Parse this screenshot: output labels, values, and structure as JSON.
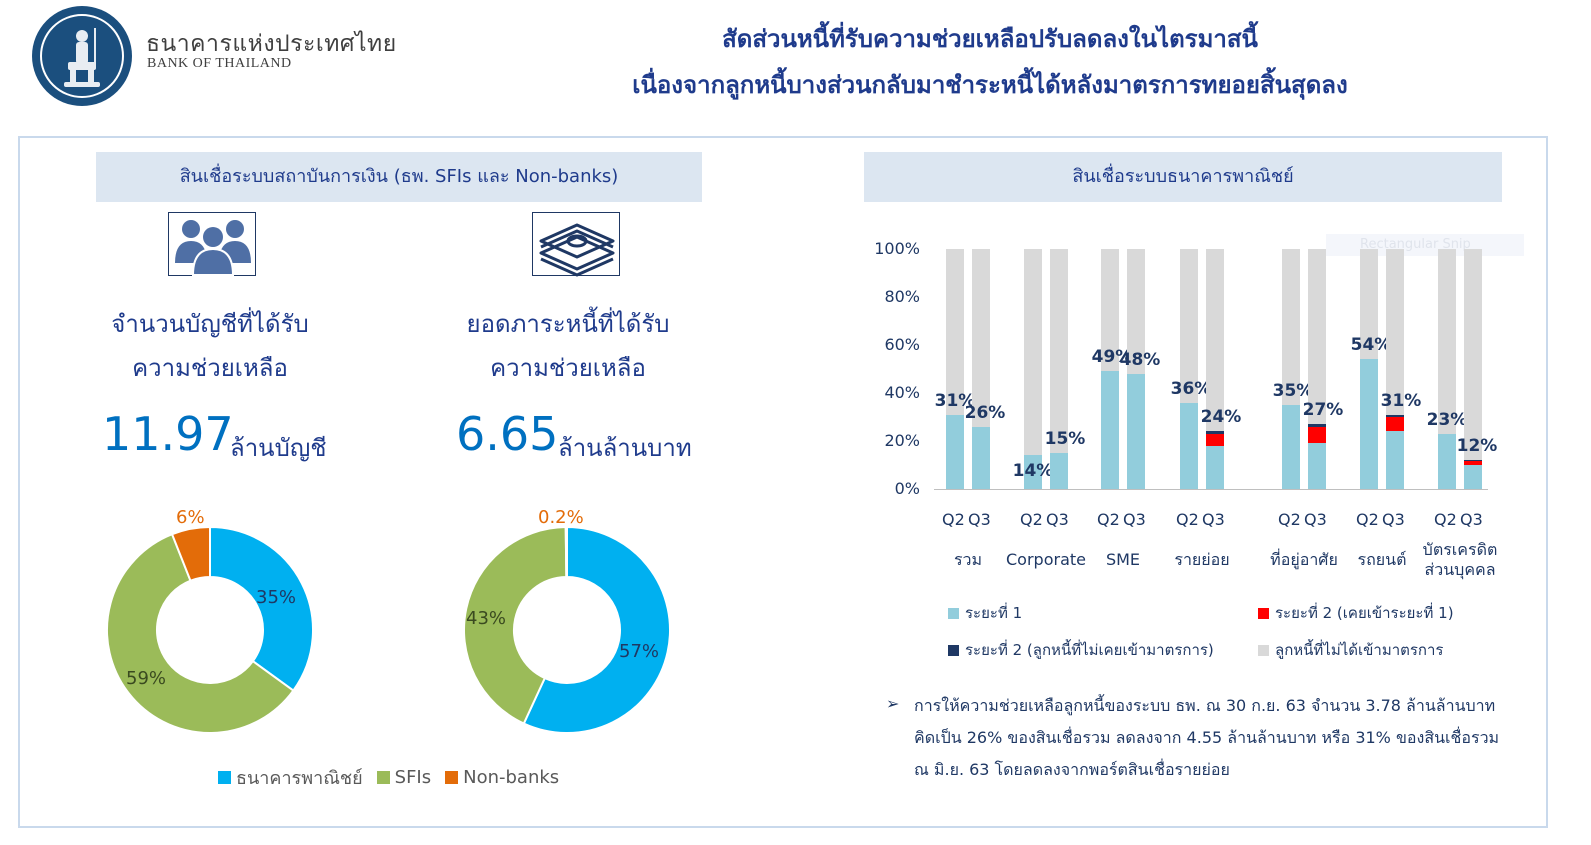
{
  "header": {
    "bank_th": "ธนาคารแห่งประเทศไทย",
    "bank_en": "BANK OF THAILAND",
    "title_line1": "สัดส่วนหนี้ที่รับความช่วยเหลือปรับลดลงในไตรมาสนี้",
    "title_line2": "เนื่องจากลูกหนี้บางส่วนกลับมาชำระหนี้ได้หลังมาตรการทยอยสิ้นสุดลง"
  },
  "left_panel": {
    "banner": "สินเชื่อระบบสถาบันการเงิน (ธพ. SFIs และ Non-banks)",
    "accounts": {
      "label_line1": "จำนวนบัญชีที่ได้รับ",
      "label_line2": "ความช่วยเหลือ",
      "value": "11.97",
      "unit": "ล้านบัญชี",
      "icon": "people-icon"
    },
    "debt": {
      "label_line1": "ยอดภาระหนี้ที่ได้รับ",
      "label_line2": "ความช่วยเหลือ",
      "value": "6.65",
      "unit": "ล้านล้านบาท",
      "icon": "money-stack-icon"
    },
    "legend": [
      "ธนาคารพาณิชย์",
      "SFIs",
      "Non-banks"
    ]
  },
  "right_panel": {
    "banner": "สินเชื่อระบบธนาคารพาณิชย์",
    "ghost_text": "Rectangular Snip",
    "legend": [
      "ระยะที่ 1",
      "ระยะที่ 2 (เคยเข้าระยะที่ 1)",
      "ระยะที่ 2 (ลูกหนี้ที่ไม่เคยเข้ามาตรการ)",
      "ลูกหนี้ที่ไม่ได้เข้ามาตรการ"
    ],
    "note_line1": "การให้ความช่วยเหลือลูกหนี้ของระบบ ธพ. ณ 30 ก.ย. 63 จำนวน 3.78 ล้านล้านบาท",
    "note_line2": "คิดเป็น 26% ของสินเชื่อรวม ลดลงจาก 4.55 ล้านล้านบาท หรือ 31% ของสินเชื่อรวม",
    "note_line3": "ณ มิ.ย. 63 โดยลดลงจากพอร์ตสินเชื่อรายย่อย"
  },
  "colors": {
    "commercial_bank": "#00b0f0",
    "sfis": "#9bbb59",
    "non_banks": "#e36c09",
    "phase1": "#92cddc",
    "phase2_prev": "#ff0000",
    "phase2_new": "#1f3864",
    "not_in_program": "#d9d9d9"
  },
  "chart_data": [
    {
      "type": "pie",
      "labels": [
        "ธนาคารพาณิชย์",
        "SFIs",
        "Non-banks"
      ],
      "values": [
        35,
        59,
        6
      ],
      "value_labels": [
        "35%",
        "59%",
        "6%"
      ]
    },
    {
      "type": "pie",
      "labels": [
        "ธนาคารพาณิชย์",
        "SFIs",
        "Non-banks"
      ],
      "values": [
        57,
        43,
        0.2
      ],
      "value_labels": [
        "57%",
        "43%",
        "0.2%"
      ]
    },
    {
      "type": "bar",
      "stacked": true,
      "ylim": [
        0,
        100
      ],
      "yticks": [
        "0%",
        "20%",
        "40%",
        "60%",
        "80%",
        "100%"
      ],
      "groups": [
        {
          "name_lines": [
            "รวม"
          ],
          "bars": [
            {
              "q": "Q2",
              "p1": 31,
              "p2a": 0,
              "p2b": 0,
              "label": "31%"
            },
            {
              "q": "Q3",
              "p1": 26,
              "p2a": 0,
              "p2b": 0,
              "label": "26%"
            }
          ]
        },
        {
          "name_lines": [
            "Corporate"
          ],
          "bars": [
            {
              "q": "Q2",
              "p1": 14,
              "p2a": 0,
              "p2b": 0,
              "label": "14%"
            },
            {
              "q": "Q3",
              "p1": 15,
              "p2a": 0,
              "p2b": 0,
              "label": "15%"
            }
          ]
        },
        {
          "name_lines": [
            "SME"
          ],
          "bars": [
            {
              "q": "Q2",
              "p1": 49,
              "p2a": 0,
              "p2b": 0,
              "label": "49%"
            },
            {
              "q": "Q3",
              "p1": 48,
              "p2a": 0,
              "p2b": 0,
              "label": "48%"
            }
          ]
        },
        {
          "name_lines": [
            "รายย่อย"
          ],
          "bars": [
            {
              "q": "Q2",
              "p1": 36,
              "p2a": 0,
              "p2b": 0,
              "label": "36%"
            },
            {
              "q": "Q3",
              "p1": 18,
              "p2a": 5,
              "p2b": 1,
              "label": "24%"
            }
          ]
        },
        {
          "name_lines": [
            "ที่อยู่อาศัย"
          ],
          "bars": [
            {
              "q": "Q2",
              "p1": 35,
              "p2a": 0,
              "p2b": 0,
              "label": "35%"
            },
            {
              "q": "Q3",
              "p1": 19,
              "p2a": 7,
              "p2b": 1,
              "label": "27%"
            }
          ]
        },
        {
          "name_lines": [
            "รถยนต์"
          ],
          "bars": [
            {
              "q": "Q2",
              "p1": 54,
              "p2a": 0,
              "p2b": 0,
              "label": "54%"
            },
            {
              "q": "Q3",
              "p1": 24,
              "p2a": 6,
              "p2b": 1,
              "label": "31%"
            }
          ]
        },
        {
          "name_lines": [
            "บัตรเครดิต",
            "ส่วนบุคคล"
          ],
          "bars": [
            {
              "q": "Q2",
              "p1": 23,
              "p2a": 0,
              "p2b": 0,
              "label": "23%"
            },
            {
              "q": "Q3",
              "p1": 10,
              "p2a": 1.5,
              "p2b": 0.5,
              "label": "12%"
            }
          ]
        }
      ]
    }
  ]
}
